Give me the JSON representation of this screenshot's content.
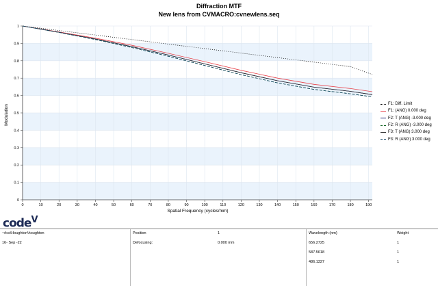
{
  "chart_data": {
    "type": "line",
    "title": "Diffraction MTF",
    "subtitle": "New lens from CVMACRO:cvnewlens.seq",
    "xlabel": "Spatial Frequency (cycles/mm)",
    "ylabel": "Modulation",
    "xlim": [
      0,
      192
    ],
    "ylim": [
      0,
      1
    ],
    "xticks": [
      "0",
      "10",
      "20",
      "30",
      "40",
      "50",
      "60",
      "70",
      "80",
      "90",
      "100",
      "110",
      "120",
      "130",
      "140",
      "150",
      "160",
      "170",
      "180",
      "190"
    ],
    "yticks": [
      "0",
      "0.1",
      "0.2",
      "0.3",
      "0.4",
      "0.5",
      "0.6",
      "0.7",
      "0.8",
      "0.9",
      "1"
    ],
    "legend_position": "right",
    "x": [
      0,
      20,
      40,
      60,
      80,
      100,
      120,
      140,
      160,
      180,
      192
    ],
    "series": [
      {
        "name": "F1: Diff. Limit",
        "color": "#000000",
        "dash": "1,2",
        "values": [
          1.0,
          0.974,
          0.948,
          0.922,
          0.896,
          0.87,
          0.844,
          0.818,
          0.792,
          0.766,
          0.721
        ]
      },
      {
        "name": "F1: (ANG) 0.000 deg",
        "color": "#e8434b",
        "dash": "",
        "values": [
          1.0,
          0.966,
          0.93,
          0.889,
          0.843,
          0.795,
          0.745,
          0.7,
          0.664,
          0.64,
          0.622
        ]
      },
      {
        "name": "F2: T (ANG) -3.000 deg",
        "color": "#1a1f6e",
        "dash": "",
        "values": [
          1.0,
          0.964,
          0.925,
          0.881,
          0.833,
          0.782,
          0.731,
          0.685,
          0.648,
          0.624,
          0.605
        ]
      },
      {
        "name": "F2: R (ANG) -3.000 deg",
        "color": "#1a6a2a",
        "dash": "4,2",
        "values": [
          1.0,
          0.963,
          0.922,
          0.876,
          0.826,
          0.773,
          0.72,
          0.673,
          0.635,
          0.61,
          0.592
        ]
      },
      {
        "name": "F3: T (ANG) 3.000 deg",
        "color": "#333333",
        "dash": "",
        "values": [
          1.0,
          0.964,
          0.925,
          0.881,
          0.833,
          0.782,
          0.731,
          0.685,
          0.648,
          0.624,
          0.605
        ]
      },
      {
        "name": "F3: R (ANG) 3.000 deg",
        "color": "#1a4a6a",
        "dash": "4,2",
        "values": [
          1.0,
          0.963,
          0.922,
          0.876,
          0.826,
          0.773,
          0.72,
          0.673,
          0.635,
          0.61,
          0.592
        ]
      }
    ]
  },
  "logo": {
    "text": "code",
    "suffix": "V"
  },
  "footer": {
    "path": "~rlcs\\Houghton\\houghton",
    "date": "16- Sep -22",
    "position_label": "Position",
    "position_value": "1",
    "defocusing_label": "Defocusing:",
    "defocusing_value": "0.000 mm",
    "wavelength_label": "Wavelength (nm)",
    "weight_label": "Weight",
    "wavelengths": [
      {
        "value": "656.2725",
        "weight": "1"
      },
      {
        "value": "587.5618",
        "weight": "1"
      },
      {
        "value": "486.1327",
        "weight": "1"
      }
    ]
  }
}
